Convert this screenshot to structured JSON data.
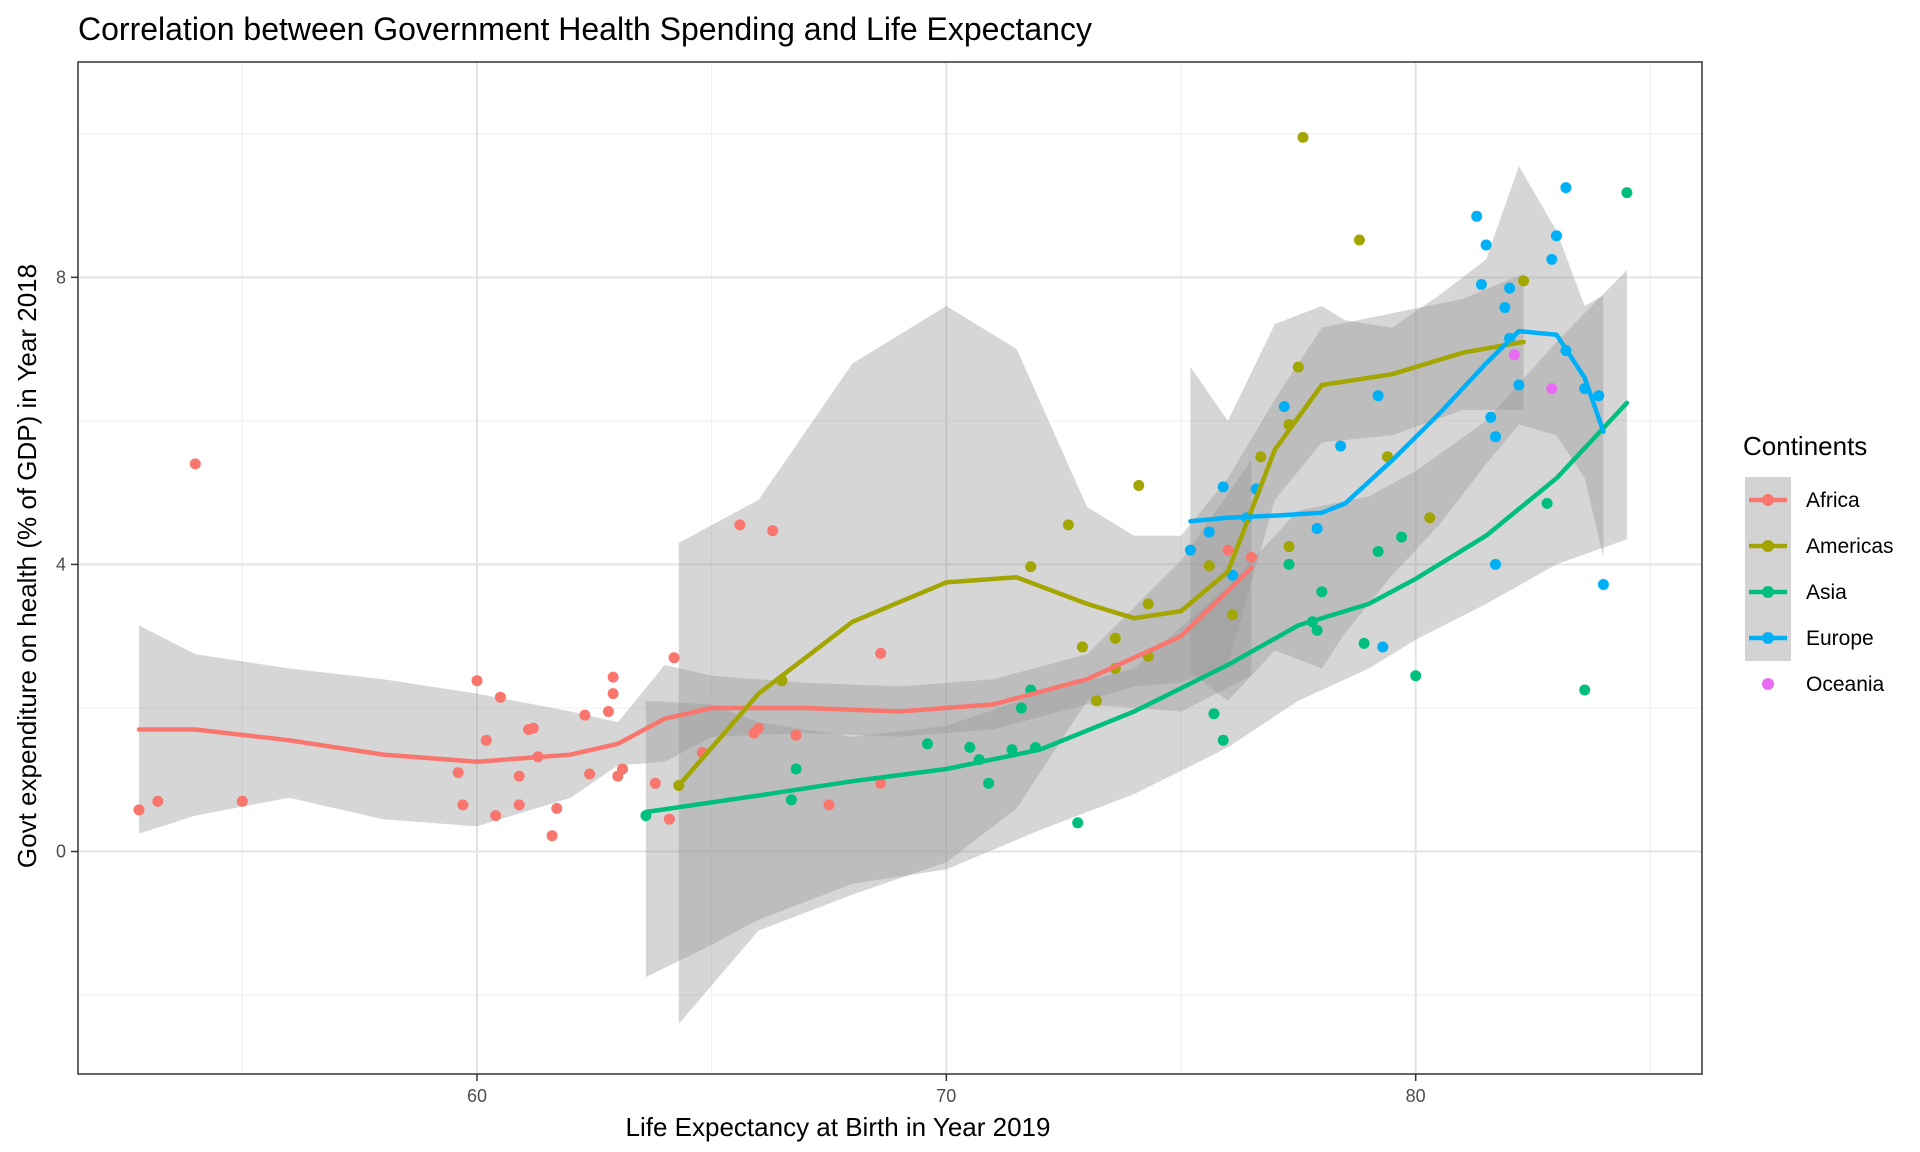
{
  "chart_data": {
    "type": "scatter",
    "title": "Correlation between Government Health Spending and Life Expectancy",
    "xlabel": "Life Expectancy at Birth in Year 2019",
    "ylabel": "Govt expenditure on health (% of GDP) in Year 2018",
    "xlim": [
      51.5,
      86.1
    ],
    "ylim": [
      -3.1,
      11.0
    ],
    "x_ticks": [
      60,
      70,
      80
    ],
    "x_minor_ticks": [
      55,
      65,
      75,
      85
    ],
    "y_ticks": [
      0,
      4,
      8
    ],
    "y_minor_ticks": [
      -2,
      2,
      6,
      10
    ],
    "grid": true,
    "legend": {
      "title": "Continents",
      "position": "right"
    },
    "series": [
      {
        "name": "Africa",
        "color": "#F8766D",
        "points": [
          [
            52.8,
            0.58
          ],
          [
            53.2,
            0.7
          ],
          [
            54.0,
            5.4
          ],
          [
            55.0,
            0.7
          ],
          [
            59.6,
            1.1
          ],
          [
            59.7,
            0.65
          ],
          [
            60.0,
            2.38
          ],
          [
            60.2,
            1.55
          ],
          [
            60.4,
            0.5
          ],
          [
            60.5,
            2.15
          ],
          [
            60.9,
            0.65
          ],
          [
            60.9,
            1.05
          ],
          [
            61.1,
            1.7
          ],
          [
            61.2,
            1.72
          ],
          [
            61.3,
            1.32
          ],
          [
            61.6,
            0.22
          ],
          [
            61.7,
            0.6
          ],
          [
            62.3,
            1.9
          ],
          [
            62.4,
            1.08
          ],
          [
            62.8,
            1.95
          ],
          [
            62.9,
            2.43
          ],
          [
            62.9,
            2.2
          ],
          [
            63.0,
            1.05
          ],
          [
            63.1,
            1.15
          ],
          [
            63.8,
            0.95
          ],
          [
            64.1,
            0.45
          ],
          [
            64.2,
            2.7
          ],
          [
            64.8,
            1.38
          ],
          [
            65.6,
            4.55
          ],
          [
            65.9,
            1.65
          ],
          [
            66.0,
            1.72
          ],
          [
            66.3,
            4.47
          ],
          [
            66.8,
            1.62
          ],
          [
            67.5,
            0.65
          ],
          [
            68.6,
            2.76
          ],
          [
            68.6,
            0.95
          ],
          [
            76.0,
            4.2
          ],
          [
            76.5,
            4.1
          ]
        ],
        "trend": [
          [
            52.8,
            1.7
          ],
          [
            54,
            1.7
          ],
          [
            56,
            1.55
          ],
          [
            58,
            1.35
          ],
          [
            60,
            1.25
          ],
          [
            62,
            1.35
          ],
          [
            63,
            1.5
          ],
          [
            64,
            1.85
          ],
          [
            65,
            2.0
          ],
          [
            67,
            2.0
          ],
          [
            69,
            1.95
          ],
          [
            71,
            2.05
          ],
          [
            73,
            2.4
          ],
          [
            75,
            3.0
          ],
          [
            76.5,
            3.95
          ]
        ],
        "band_upper": [
          [
            52.8,
            3.15
          ],
          [
            54,
            2.75
          ],
          [
            56,
            2.55
          ],
          [
            58,
            2.4
          ],
          [
            60,
            2.2
          ],
          [
            62,
            1.95
          ],
          [
            63,
            1.8
          ],
          [
            64,
            2.6
          ],
          [
            65,
            2.45
          ],
          [
            67,
            2.35
          ],
          [
            69,
            2.3
          ],
          [
            71,
            2.4
          ],
          [
            73,
            2.75
          ],
          [
            75,
            4.05
          ],
          [
            76.5,
            5.45
          ]
        ],
        "band_lower": [
          [
            76.5,
            2.45
          ],
          [
            75,
            1.95
          ],
          [
            73,
            2.05
          ],
          [
            71,
            1.7
          ],
          [
            69,
            1.6
          ],
          [
            67,
            1.65
          ],
          [
            65,
            1.6
          ],
          [
            64,
            1.25
          ],
          [
            63,
            1.2
          ],
          [
            62,
            0.75
          ],
          [
            60,
            0.35
          ],
          [
            58,
            0.45
          ],
          [
            56,
            0.75
          ],
          [
            54,
            0.5
          ],
          [
            52.8,
            0.25
          ]
        ]
      },
      {
        "name": "Americas",
        "color": "#A3A500",
        "points": [
          [
            64.3,
            0.92
          ],
          [
            66.5,
            2.38
          ],
          [
            71.8,
            3.97
          ],
          [
            72.6,
            4.55
          ],
          [
            72.9,
            2.85
          ],
          [
            73.2,
            2.1
          ],
          [
            73.6,
            2.97
          ],
          [
            73.6,
            2.55
          ],
          [
            74.1,
            5.1
          ],
          [
            74.3,
            3.45
          ],
          [
            74.3,
            2.72
          ],
          [
            75.6,
            3.98
          ],
          [
            76.1,
            3.3
          ],
          [
            76.7,
            5.5
          ],
          [
            77.3,
            5.95
          ],
          [
            77.3,
            4.25
          ],
          [
            77.5,
            6.75
          ],
          [
            77.6,
            9.95
          ],
          [
            78.8,
            8.52
          ],
          [
            79.4,
            5.5
          ],
          [
            80.3,
            4.65
          ],
          [
            82.3,
            7.95
          ]
        ],
        "trend": [
          [
            64.3,
            0.92
          ],
          [
            66,
            2.2
          ],
          [
            68,
            3.2
          ],
          [
            70,
            3.75
          ],
          [
            71.5,
            3.82
          ],
          [
            73,
            3.45
          ],
          [
            74,
            3.25
          ],
          [
            75,
            3.35
          ],
          [
            76,
            3.9
          ],
          [
            77,
            5.6
          ],
          [
            78,
            6.5
          ],
          [
            79.5,
            6.65
          ],
          [
            81,
            6.95
          ],
          [
            82.3,
            7.1
          ]
        ],
        "band_upper": [
          [
            64.3,
            4.3
          ],
          [
            66,
            4.9
          ],
          [
            68,
            6.8
          ],
          [
            70,
            7.6
          ],
          [
            71.5,
            7.0
          ],
          [
            73,
            4.8
          ],
          [
            74,
            4.4
          ],
          [
            75,
            4.4
          ],
          [
            76,
            5.2
          ],
          [
            77,
            6.3
          ],
          [
            78,
            7.3
          ],
          [
            79.5,
            7.5
          ],
          [
            81,
            7.7
          ],
          [
            82.3,
            8.05
          ]
        ],
        "band_lower": [
          [
            82.3,
            6.15
          ],
          [
            81,
            6.15
          ],
          [
            79.5,
            5.8
          ],
          [
            78,
            5.7
          ],
          [
            77,
            4.9
          ],
          [
            76,
            2.6
          ],
          [
            75,
            2.35
          ],
          [
            74,
            2.3
          ],
          [
            73,
            2.1
          ],
          [
            71.5,
            0.6
          ],
          [
            70,
            -0.15
          ],
          [
            68,
            -0.6
          ],
          [
            66,
            -1.1
          ],
          [
            64.3,
            -2.4
          ]
        ]
      },
      {
        "name": "Asia",
        "color": "#00BF7D",
        "points": [
          [
            63.6,
            0.5
          ],
          [
            66.7,
            0.72
          ],
          [
            66.8,
            1.15
          ],
          [
            69.6,
            1.5
          ],
          [
            70.5,
            1.45
          ],
          [
            70.7,
            1.28
          ],
          [
            70.9,
            0.95
          ],
          [
            71.4,
            1.42
          ],
          [
            71.6,
            2.0
          ],
          [
            71.8,
            2.25
          ],
          [
            71.9,
            1.45
          ],
          [
            72.8,
            0.4
          ],
          [
            75.7,
            1.92
          ],
          [
            75.9,
            1.55
          ],
          [
            77.3,
            4.0
          ],
          [
            77.8,
            3.2
          ],
          [
            77.9,
            3.08
          ],
          [
            78.0,
            3.62
          ],
          [
            78.9,
            2.9
          ],
          [
            79.2,
            4.18
          ],
          [
            79.7,
            4.38
          ],
          [
            80.0,
            2.45
          ],
          [
            82.8,
            4.85
          ],
          [
            83.6,
            2.25
          ],
          [
            84.5,
            9.18
          ]
        ],
        "trend": [
          [
            63.6,
            0.55
          ],
          [
            66,
            0.78
          ],
          [
            68,
            0.98
          ],
          [
            70,
            1.15
          ],
          [
            72,
            1.42
          ],
          [
            74,
            1.95
          ],
          [
            76,
            2.6
          ],
          [
            77.5,
            3.15
          ],
          [
            79,
            3.45
          ],
          [
            80,
            3.8
          ],
          [
            81.5,
            4.4
          ],
          [
            83,
            5.2
          ],
          [
            84.5,
            6.25
          ]
        ],
        "band_upper": [
          [
            63.6,
            2.1
          ],
          [
            65,
            2.05
          ],
          [
            66,
            1.8
          ],
          [
            68,
            1.6
          ],
          [
            70,
            1.75
          ],
          [
            72,
            2.2
          ],
          [
            74,
            2.55
          ],
          [
            76,
            3.7
          ],
          [
            77.5,
            4.75
          ],
          [
            79,
            4.95
          ],
          [
            80,
            5.3
          ],
          [
            81.5,
            6.0
          ],
          [
            83,
            7.1
          ],
          [
            84.5,
            8.1
          ]
        ],
        "band_lower": [
          [
            84.5,
            4.35
          ],
          [
            83,
            4.0
          ],
          [
            81.5,
            3.45
          ],
          [
            80,
            2.95
          ],
          [
            79,
            2.55
          ],
          [
            77.5,
            2.1
          ],
          [
            76,
            1.45
          ],
          [
            74,
            0.8
          ],
          [
            72,
            0.3
          ],
          [
            70,
            -0.25
          ],
          [
            68,
            -0.45
          ],
          [
            66,
            -0.95
          ],
          [
            65,
            -1.3
          ],
          [
            63.6,
            -1.75
          ]
        ]
      },
      {
        "name": "Europe",
        "color": "#00B0F6",
        "points": [
          [
            75.2,
            4.2
          ],
          [
            75.6,
            4.45
          ],
          [
            75.9,
            5.08
          ],
          [
            76.1,
            3.85
          ],
          [
            76.4,
            4.65
          ],
          [
            76.6,
            5.05
          ],
          [
            77.2,
            6.2
          ],
          [
            77.9,
            4.5
          ],
          [
            78.4,
            5.65
          ],
          [
            79.2,
            6.35
          ],
          [
            79.3,
            2.85
          ],
          [
            81.3,
            8.85
          ],
          [
            81.4,
            7.9
          ],
          [
            81.5,
            8.45
          ],
          [
            81.6,
            6.05
          ],
          [
            81.7,
            5.78
          ],
          [
            81.7,
            4.0
          ],
          [
            81.9,
            7.58
          ],
          [
            82.0,
            7.85
          ],
          [
            82.0,
            7.15
          ],
          [
            82.2,
            6.5
          ],
          [
            82.9,
            8.25
          ],
          [
            83.0,
            8.58
          ],
          [
            83.2,
            9.25
          ],
          [
            83.2,
            6.98
          ],
          [
            83.6,
            6.45
          ],
          [
            83.9,
            6.35
          ],
          [
            84.0,
            3.72
          ]
        ],
        "trend": [
          [
            75.2,
            4.6
          ],
          [
            76,
            4.65
          ],
          [
            77,
            4.68
          ],
          [
            78,
            4.72
          ],
          [
            78.5,
            4.85
          ],
          [
            79.5,
            5.45
          ],
          [
            80.5,
            6.1
          ],
          [
            81.5,
            6.8
          ],
          [
            82.2,
            7.25
          ],
          [
            83,
            7.2
          ],
          [
            83.6,
            6.6
          ],
          [
            84,
            5.85
          ]
        ],
        "band_upper": [
          [
            75.2,
            6.75
          ],
          [
            76,
            6.0
          ],
          [
            77,
            7.35
          ],
          [
            78,
            7.6
          ],
          [
            78.5,
            7.4
          ],
          [
            79.5,
            7.3
          ],
          [
            80.5,
            7.75
          ],
          [
            81.5,
            8.25
          ],
          [
            82.2,
            9.55
          ],
          [
            83,
            8.65
          ],
          [
            83.6,
            7.6
          ],
          [
            84,
            7.75
          ]
        ],
        "band_lower": [
          [
            84,
            4.1
          ],
          [
            83.6,
            5.2
          ],
          [
            83,
            5.8
          ],
          [
            82.2,
            5.95
          ],
          [
            81.5,
            5.4
          ],
          [
            80.5,
            4.55
          ],
          [
            79.5,
            3.85
          ],
          [
            78.5,
            3.05
          ],
          [
            78,
            2.55
          ],
          [
            77,
            2.8
          ],
          [
            76,
            2.1
          ],
          [
            75.2,
            2.5
          ]
        ]
      },
      {
        "name": "Oceania",
        "color": "#E76BF3",
        "points": [
          [
            82.1,
            6.92
          ],
          [
            82.9,
            6.45
          ]
        ]
      }
    ]
  }
}
